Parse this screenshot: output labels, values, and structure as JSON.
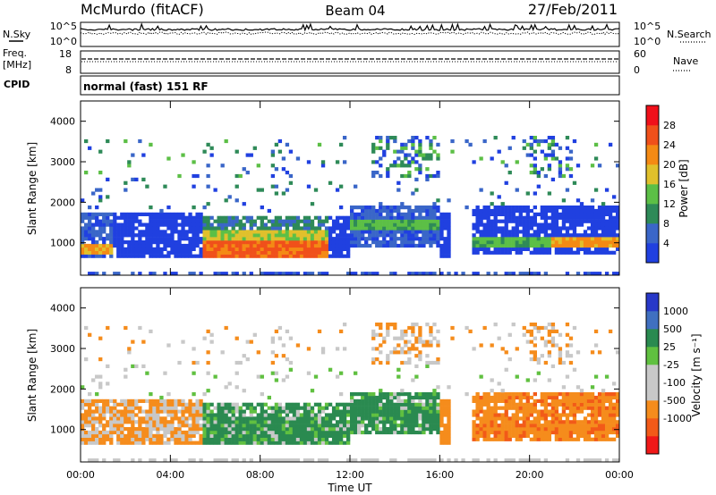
{
  "header": {
    "station": "McMurdo (fitACF)",
    "beam": "Beam 04",
    "date": "27/Feb/2011"
  },
  "side_labels": {
    "nsky": "N.Sky",
    "freq_line1": "Freq.",
    "freq_line2": "[MHz]",
    "cpid": "CPID",
    "nsearch": "N.Search",
    "nave": "Nave"
  },
  "mode_text": "normal (fast) 151 RF",
  "xlabel": "Time UT",
  "colors": {
    "power": [
      "#2040e0",
      "#3a66c8",
      "#2e8a58",
      "#5cbf46",
      "#e0c02c",
      "#f48a14",
      "#f0501a",
      "#f0101a"
    ],
    "velocity": [
      "#f01818",
      "#f25a18",
      "#f58c1c",
      "#c8c8c8",
      "#c8c8c8",
      "#60c040",
      "#2a8a50",
      "#4070c0",
      "#2838c8"
    ]
  },
  "chart_data": [
    {
      "type": "line",
      "panel": "noise",
      "yticks_left": [
        "10^5",
        "10^0"
      ],
      "yticks_right": [
        "10^5",
        "10^0"
      ]
    },
    {
      "type": "line",
      "panel": "freq-nave",
      "yticks_left": [
        "18",
        "8"
      ],
      "yticks_right": [
        "60",
        "0"
      ]
    },
    {
      "type": "heatmap",
      "panel": "power",
      "xlabel": "",
      "ylabel": "Slant Range [km]",
      "xticks": [],
      "yticks": [
        "1000",
        "2000",
        "3000",
        "4000"
      ],
      "ylim": [
        200,
        4500
      ],
      "xlim_hours": [
        0,
        24
      ],
      "colorbar_label": "Power [dB]",
      "colorbar_ticks": [
        "4",
        "8",
        "12",
        "16",
        "20",
        "24",
        "28"
      ]
    },
    {
      "type": "heatmap",
      "panel": "velocity",
      "xlabel": "Time UT",
      "ylabel": "Slant Range [km]",
      "xticks": [
        "00:00",
        "04:00",
        "08:00",
        "12:00",
        "16:00",
        "20:00",
        "00:00"
      ],
      "yticks": [
        "1000",
        "2000",
        "3000",
        "4000"
      ],
      "ylim": [
        200,
        4500
      ],
      "xlim_hours": [
        0,
        24
      ],
      "colorbar_label": "Velocity [m s⁻¹]",
      "colorbar_ticks": [
        "1000",
        "500",
        "25",
        "-25",
        "-100",
        "-500",
        "-1000"
      ]
    }
  ]
}
